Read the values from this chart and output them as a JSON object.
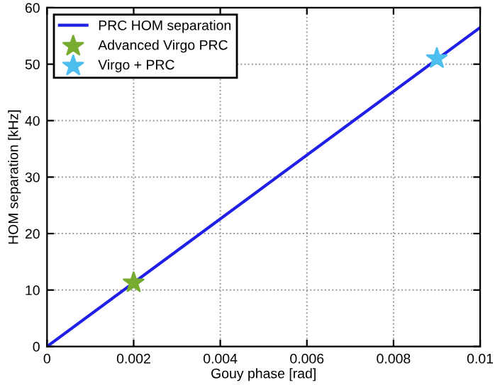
{
  "chart_data": {
    "type": "line",
    "xlabel": "Gouy phase [rad]",
    "ylabel": "HOM separation [kHz]",
    "xlim": [
      0,
      0.01
    ],
    "ylim": [
      0,
      60
    ],
    "xticks": [
      0,
      0.002,
      0.004,
      0.006,
      0.008,
      0.01
    ],
    "yticks": [
      0,
      10,
      20,
      30,
      40,
      50,
      60
    ],
    "grid": true,
    "legend": "top left",
    "series": [
      {
        "name": "PRC HOM separation",
        "color": "#1f1fe6",
        "x": [
          0,
          0.01
        ],
        "values": [
          0,
          56.5
        ],
        "marker": "none",
        "line_style": "solid"
      },
      {
        "name": "Advanced Virgo PRC",
        "type": "scatter",
        "color": "#77ac30",
        "x": [
          0.002
        ],
        "values": [
          11.3
        ],
        "marker": "star"
      },
      {
        "name": "Virgo + PRC",
        "type": "scatter",
        "color": "#4dbeee",
        "x": [
          0.009
        ],
        "values": [
          51
        ],
        "marker": "star"
      }
    ]
  }
}
